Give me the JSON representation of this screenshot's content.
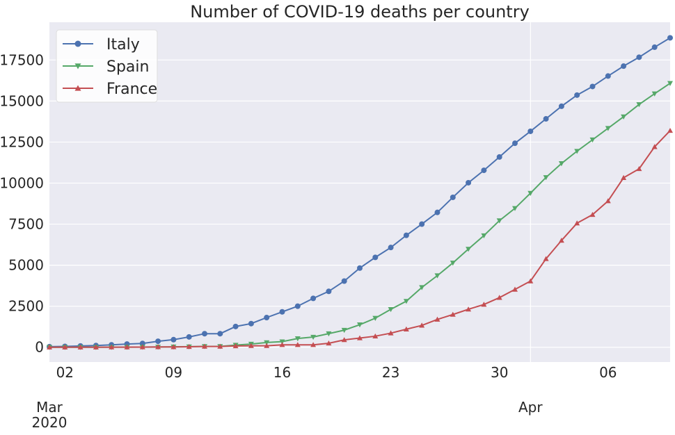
{
  "chart_data": {
    "type": "line",
    "title": "Number of COVID-19 deaths per country",
    "xlabel": "",
    "ylabel": "",
    "x": [
      "2020-03-01",
      "2020-03-02",
      "2020-03-03",
      "2020-03-04",
      "2020-03-05",
      "2020-03-06",
      "2020-03-07",
      "2020-03-08",
      "2020-03-09",
      "2020-03-10",
      "2020-03-11",
      "2020-03-12",
      "2020-03-13",
      "2020-03-14",
      "2020-03-15",
      "2020-03-16",
      "2020-03-17",
      "2020-03-18",
      "2020-03-19",
      "2020-03-20",
      "2020-03-21",
      "2020-03-22",
      "2020-03-23",
      "2020-03-24",
      "2020-03-25",
      "2020-03-26",
      "2020-03-27",
      "2020-03-28",
      "2020-03-29",
      "2020-03-30",
      "2020-03-31",
      "2020-04-01",
      "2020-04-02",
      "2020-04-03",
      "2020-04-04",
      "2020-04-05",
      "2020-04-06",
      "2020-04-07",
      "2020-04-08",
      "2020-04-09",
      "2020-04-10"
    ],
    "xlim": [
      "2020-03-01",
      "2020-04-10"
    ],
    "ylim": [
      -900,
      19800
    ],
    "y_ticks": [
      0,
      2500,
      5000,
      7500,
      10000,
      12500,
      15000,
      17500
    ],
    "x_ticks": [
      {
        "date": "2020-03-02",
        "label": "02"
      },
      {
        "date": "2020-03-09",
        "label": "09"
      },
      {
        "date": "2020-03-16",
        "label": "16"
      },
      {
        "date": "2020-03-23",
        "label": "23"
      },
      {
        "date": "2020-03-30",
        "label": "30"
      },
      {
        "date": "2020-04-06",
        "label": "06"
      }
    ],
    "month_ticks": [
      {
        "date": "2020-03-01",
        "line1": "Mar",
        "line2": "2020"
      },
      {
        "date": "2020-04-01",
        "line1": "Apr",
        "line2": ""
      }
    ],
    "grid": true,
    "legend_position": "top-left",
    "series": [
      {
        "name": "Italy",
        "color": "#4c72b0",
        "marker": "circle",
        "values": [
          34,
          52,
          79,
          107,
          148,
          197,
          233,
          366,
          463,
          631,
          827,
          827,
          1266,
          1441,
          1809,
          2158,
          2503,
          2978,
          3405,
          4032,
          4825,
          5476,
          6077,
          6820,
          7503,
          8215,
          9134,
          10023,
          10779,
          11591,
          12428,
          13155,
          13915,
          14681,
          15362,
          15887,
          16523,
          17127,
          17669,
          18279,
          18849
        ]
      },
      {
        "name": "Spain",
        "color": "#55a868",
        "marker": "triangle-down",
        "values": [
          0,
          0,
          1,
          2,
          3,
          5,
          10,
          17,
          28,
          35,
          54,
          55,
          133,
          195,
          289,
          342,
          533,
          623,
          830,
          1043,
          1375,
          1772,
          2311,
          2808,
          3647,
          4365,
          5138,
          5982,
          6803,
          7716,
          8464,
          9387,
          10348,
          11198,
          11947,
          12641,
          13341,
          14045,
          14792,
          15447,
          16081
        ]
      },
      {
        "name": "France",
        "color": "#c44e52",
        "marker": "triangle-up",
        "values": [
          2,
          3,
          4,
          4,
          6,
          9,
          11,
          19,
          19,
          33,
          48,
          48,
          79,
          91,
          91,
          149,
          149,
          149,
          244,
          450,
          562,
          674,
          860,
          1100,
          1331,
          1696,
          1995,
          2314,
          2606,
          3024,
          3523,
          4032,
          5387,
          6507,
          7560,
          8078,
          8911,
          10328,
          10869,
          12210,
          13197
        ]
      }
    ]
  }
}
